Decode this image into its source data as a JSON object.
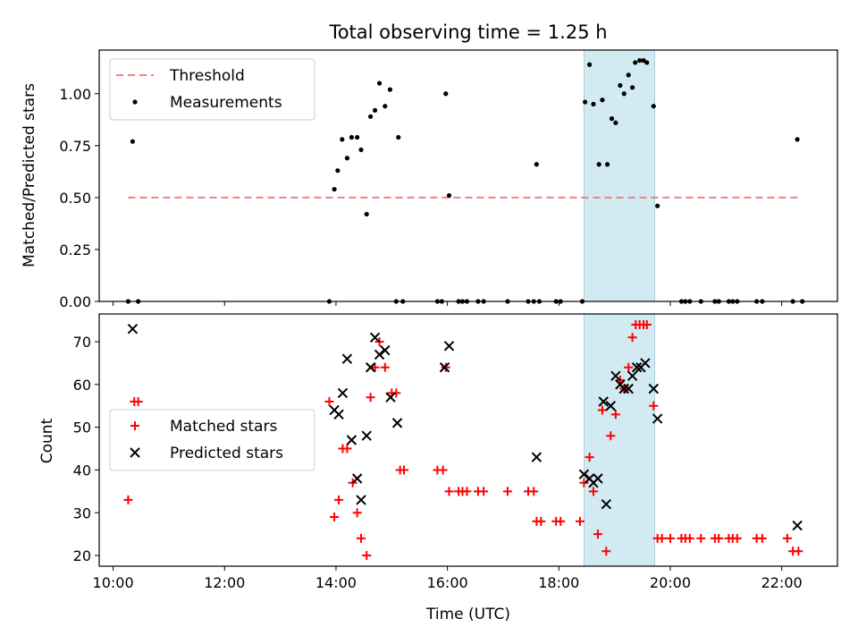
{
  "chart_data": [
    {
      "type": "scatter",
      "title": "Total observing time = 1.25 h",
      "xlabel": "",
      "ylabel": "Matched/Predicted stars",
      "xlim": [
        9.75,
        23.0
      ],
      "ylim": [
        0.0,
        1.21
      ],
      "yticks": [
        0.0,
        0.25,
        0.5,
        0.75,
        1.0
      ],
      "ytick_labels": [
        "0.00",
        "0.25",
        "0.50",
        "0.75",
        "1.00"
      ],
      "highlight_span": [
        18.45,
        19.72
      ],
      "legend": {
        "position": "top-left",
        "entries": [
          "Threshold",
          "Measurements"
        ]
      },
      "series": [
        {
          "name": "Threshold",
          "style": "dashed-line",
          "color": "#f08080",
          "points": [
            [
              10.27,
              0.5
            ],
            [
              22.37,
              0.5
            ]
          ]
        },
        {
          "name": "Measurements",
          "style": "dot",
          "color": "#000000",
          "points": [
            [
              10.27,
              0.0
            ],
            [
              10.35,
              0.77
            ],
            [
              10.45,
              0.0
            ],
            [
              13.88,
              0.0
            ],
            [
              13.97,
              0.54
            ],
            [
              14.03,
              0.63
            ],
            [
              14.11,
              0.78
            ],
            [
              14.2,
              0.69
            ],
            [
              14.28,
              0.79
            ],
            [
              14.38,
              0.79
            ],
            [
              14.45,
              0.73
            ],
            [
              14.55,
              0.42
            ],
            [
              14.62,
              0.89
            ],
            [
              14.7,
              0.92
            ],
            [
              14.78,
              1.05
            ],
            [
              14.88,
              0.94
            ],
            [
              14.97,
              1.02
            ],
            [
              15.12,
              0.79
            ],
            [
              15.08,
              0.0
            ],
            [
              15.2,
              0.0
            ],
            [
              15.82,
              0.0
            ],
            [
              15.9,
              0.0
            ],
            [
              15.97,
              1.0
            ],
            [
              16.03,
              0.51
            ],
            [
              16.2,
              0.0
            ],
            [
              16.27,
              0.0
            ],
            [
              16.35,
              0.0
            ],
            [
              16.55,
              0.0
            ],
            [
              16.65,
              0.0
            ],
            [
              17.08,
              0.0
            ],
            [
              17.45,
              0.0
            ],
            [
              17.55,
              0.0
            ],
            [
              17.6,
              0.66
            ],
            [
              17.65,
              0.0
            ],
            [
              17.95,
              0.0
            ],
            [
              18.03,
              0.0
            ],
            [
              18.42,
              0.0
            ],
            [
              18.47,
              0.96
            ],
            [
              18.55,
              1.14
            ],
            [
              18.62,
              0.95
            ],
            [
              18.72,
              0.66
            ],
            [
              18.78,
              0.97
            ],
            [
              18.87,
              0.66
            ],
            [
              18.95,
              0.88
            ],
            [
              19.02,
              0.86
            ],
            [
              19.1,
              1.04
            ],
            [
              19.17,
              1.0
            ],
            [
              19.25,
              1.09
            ],
            [
              19.32,
              1.03
            ],
            [
              19.37,
              1.15
            ],
            [
              19.45,
              1.16
            ],
            [
              19.52,
              1.16
            ],
            [
              19.58,
              1.15
            ],
            [
              19.7,
              0.94
            ],
            [
              19.77,
              0.46
            ],
            [
              20.2,
              0.0
            ],
            [
              20.27,
              0.0
            ],
            [
              20.35,
              0.0
            ],
            [
              20.55,
              0.0
            ],
            [
              20.8,
              0.0
            ],
            [
              20.87,
              0.0
            ],
            [
              21.05,
              0.0
            ],
            [
              21.12,
              0.0
            ],
            [
              21.2,
              0.0
            ],
            [
              21.55,
              0.0
            ],
            [
              21.65,
              0.0
            ],
            [
              22.2,
              0.0
            ],
            [
              22.28,
              0.78
            ],
            [
              22.37,
              0.0
            ]
          ]
        }
      ]
    },
    {
      "type": "scatter",
      "title": "",
      "xlabel": "Time (UTC)",
      "ylabel": "Count",
      "xlim": [
        9.75,
        23.0
      ],
      "ylim": [
        17.5,
        76.5
      ],
      "yticks": [
        20,
        30,
        40,
        50,
        60,
        70
      ],
      "ytick_labels": [
        "20",
        "30",
        "40",
        "50",
        "60",
        "70"
      ],
      "xticks": [
        10,
        12,
        14,
        16,
        18,
        20,
        22
      ],
      "xtick_labels": [
        "10:00",
        "12:00",
        "14:00",
        "16:00",
        "18:00",
        "20:00",
        "22:00"
      ],
      "highlight_span": [
        18.45,
        19.72
      ],
      "legend": {
        "position": "center-left",
        "entries": [
          "Matched stars",
          "Predicted stars"
        ]
      },
      "series": [
        {
          "name": "Matched stars",
          "style": "plus",
          "color": "#ff0000",
          "points": [
            [
              10.27,
              33
            ],
            [
              10.38,
              56
            ],
            [
              10.45,
              56
            ],
            [
              13.88,
              56
            ],
            [
              13.97,
              29
            ],
            [
              14.05,
              33
            ],
            [
              14.12,
              45
            ],
            [
              14.2,
              45
            ],
            [
              14.3,
              37
            ],
            [
              14.38,
              30
            ],
            [
              14.45,
              24
            ],
            [
              14.55,
              20
            ],
            [
              14.62,
              57
            ],
            [
              14.7,
              64
            ],
            [
              14.78,
              70
            ],
            [
              14.88,
              64
            ],
            [
              15.0,
              58
            ],
            [
              15.08,
              58
            ],
            [
              15.15,
              40
            ],
            [
              15.22,
              40
            ],
            [
              15.82,
              40
            ],
            [
              15.92,
              40
            ],
            [
              15.97,
              64
            ],
            [
              16.03,
              35
            ],
            [
              16.2,
              35
            ],
            [
              16.27,
              35
            ],
            [
              16.35,
              35
            ],
            [
              16.55,
              35
            ],
            [
              16.65,
              35
            ],
            [
              17.08,
              35
            ],
            [
              17.45,
              35
            ],
            [
              17.55,
              35
            ],
            [
              17.6,
              28
            ],
            [
              17.68,
              28
            ],
            [
              17.95,
              28
            ],
            [
              18.03,
              28
            ],
            [
              18.38,
              28
            ],
            [
              18.45,
              37
            ],
            [
              18.55,
              43
            ],
            [
              18.62,
              35
            ],
            [
              18.7,
              25
            ],
            [
              18.78,
              54
            ],
            [
              18.85,
              21
            ],
            [
              18.93,
              48
            ],
            [
              19.02,
              53
            ],
            [
              19.1,
              61
            ],
            [
              19.17,
              59
            ],
            [
              19.25,
              64
            ],
            [
              19.32,
              71
            ],
            [
              19.38,
              74
            ],
            [
              19.45,
              74
            ],
            [
              19.52,
              74
            ],
            [
              19.58,
              74
            ],
            [
              19.7,
              55
            ],
            [
              19.77,
              24
            ],
            [
              19.85,
              24
            ],
            [
              20.0,
              24
            ],
            [
              20.2,
              24
            ],
            [
              20.27,
              24
            ],
            [
              20.35,
              24
            ],
            [
              20.55,
              24
            ],
            [
              20.8,
              24
            ],
            [
              20.87,
              24
            ],
            [
              21.05,
              24
            ],
            [
              21.12,
              24
            ],
            [
              21.2,
              24
            ],
            [
              21.55,
              24
            ],
            [
              21.65,
              24
            ],
            [
              22.1,
              24
            ],
            [
              22.2,
              21
            ],
            [
              22.3,
              21
            ]
          ]
        },
        {
          "name": "Predicted stars",
          "style": "x",
          "color": "#000000",
          "points": [
            [
              10.35,
              73
            ],
            [
              13.97,
              54
            ],
            [
              14.05,
              53
            ],
            [
              14.12,
              58
            ],
            [
              14.2,
              66
            ],
            [
              14.28,
              47
            ],
            [
              14.38,
              38
            ],
            [
              14.45,
              33
            ],
            [
              14.55,
              48
            ],
            [
              14.62,
              64
            ],
            [
              14.7,
              71
            ],
            [
              14.78,
              67
            ],
            [
              14.88,
              68
            ],
            [
              14.98,
              57
            ],
            [
              15.1,
              51
            ],
            [
              15.95,
              64
            ],
            [
              16.03,
              69
            ],
            [
              17.6,
              43
            ],
            [
              18.45,
              39
            ],
            [
              18.55,
              38
            ],
            [
              18.62,
              37
            ],
            [
              18.7,
              38
            ],
            [
              18.8,
              56
            ],
            [
              18.85,
              32
            ],
            [
              18.93,
              55
            ],
            [
              19.02,
              62
            ],
            [
              19.1,
              60
            ],
            [
              19.17,
              59
            ],
            [
              19.25,
              59
            ],
            [
              19.32,
              62
            ],
            [
              19.4,
              64
            ],
            [
              19.47,
              64
            ],
            [
              19.55,
              65
            ],
            [
              19.7,
              59
            ],
            [
              19.77,
              52
            ],
            [
              22.28,
              27
            ]
          ]
        }
      ]
    }
  ]
}
